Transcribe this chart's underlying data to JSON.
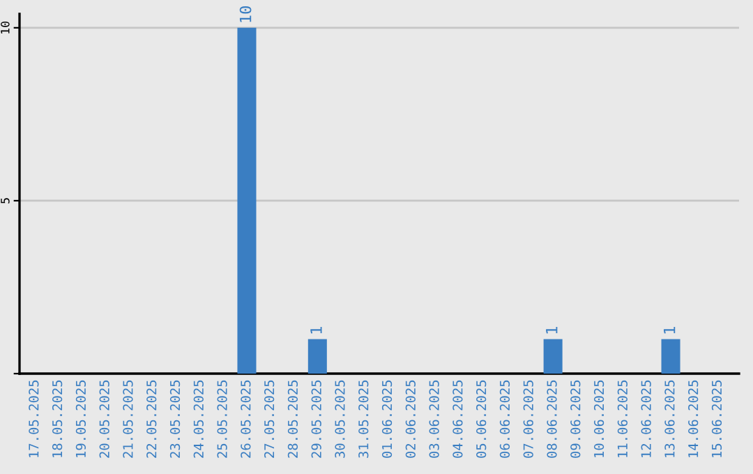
{
  "chart_data": {
    "type": "bar",
    "categories": [
      "17.05.2025",
      "18.05.2025",
      "19.05.2025",
      "20.05.2025",
      "21.05.2025",
      "22.05.2025",
      "23.05.2025",
      "24.05.2025",
      "25.05.2025",
      "26.05.2025",
      "27.05.2025",
      "28.05.2025",
      "29.05.2025",
      "30.05.2025",
      "31.05.2025",
      "01.06.2025",
      "02.06.2025",
      "03.06.2025",
      "04.06.2025",
      "05.06.2025",
      "06.06.2025",
      "07.06.2025",
      "08.06.2025",
      "09.06.2025",
      "10.06.2025",
      "11.06.2025",
      "12.06.2025",
      "13.06.2025",
      "14.06.2025",
      "15.06.2025"
    ],
    "values": [
      0,
      0,
      0,
      0,
      0,
      0,
      0,
      0,
      0,
      10,
      0,
      0,
      1,
      0,
      0,
      0,
      0,
      0,
      0,
      0,
      0,
      0,
      1,
      0,
      0,
      0,
      0,
      1,
      0,
      0
    ],
    "value_labels": [
      null,
      null,
      null,
      null,
      null,
      null,
      null,
      null,
      null,
      "10",
      null,
      null,
      "1",
      null,
      null,
      null,
      null,
      null,
      null,
      null,
      null,
      null,
      "1",
      null,
      null,
      null,
      null,
      "1",
      null,
      null
    ],
    "color": "#3a7ec2",
    "ylim": [
      0,
      10.4
    ],
    "yticks": [
      {
        "value": 0,
        "label": null
      },
      5,
      10
    ],
    "grid": "y"
  }
}
